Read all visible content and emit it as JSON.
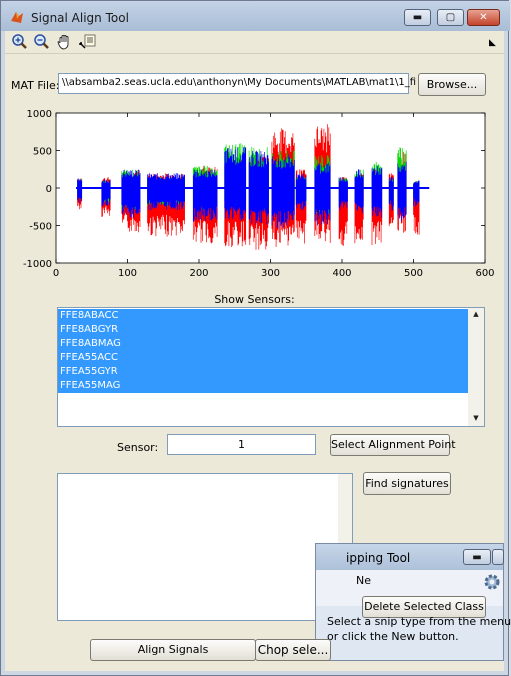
{
  "window": {
    "title": "Signal Align Tool"
  },
  "toolbar": {
    "icons": [
      "zoom-in-icon",
      "zoom-out-icon",
      "pan-hand-icon",
      "data-cursor-icon"
    ]
  },
  "mat": {
    "label": "MAT File:",
    "path": "\\\\absamba2.seas.ucla.edu\\anthonyn\\My Documents\\MATLAB\\mat1\\1_fi",
    "browse_label": "Browse..."
  },
  "chart_data": {
    "type": "line",
    "x_ticks": [
      0,
      100,
      200,
      300,
      400,
      500,
      600
    ],
    "y_ticks": [
      1000,
      500,
      0,
      -500,
      -1000
    ],
    "xlim": [
      0,
      600
    ],
    "ylim": [
      -1000,
      1000
    ],
    "grid": false,
    "series_colors": [
      "#ff0000",
      "#00dd00",
      "#0000ff"
    ],
    "segments": [
      {
        "x0": 30,
        "x1": 36,
        "red": [
          -300,
          150
        ],
        "green": [
          -150,
          120
        ],
        "blue": [
          -200,
          150
        ]
      },
      {
        "x0": 64,
        "x1": 76,
        "red": [
          -400,
          150
        ],
        "green": [
          -200,
          100
        ],
        "blue": [
          -250,
          120
        ]
      },
      {
        "x0": 92,
        "x1": 118,
        "red": [
          -600,
          250
        ],
        "green": [
          -300,
          250
        ],
        "blue": [
          -400,
          250
        ]
      },
      {
        "x0": 128,
        "x1": 180,
        "red": [
          -650,
          200
        ],
        "green": [
          -250,
          150
        ],
        "blue": [
          -300,
          200
        ]
      },
      {
        "x0": 192,
        "x1": 226,
        "red": [
          -750,
          300
        ],
        "green": [
          -300,
          300
        ],
        "blue": [
          -450,
          250
        ]
      },
      {
        "x0": 236,
        "x1": 266,
        "red": [
          -800,
          400
        ],
        "green": [
          -250,
          600
        ],
        "blue": [
          -450,
          550
        ]
      },
      {
        "x0": 270,
        "x1": 298,
        "red": [
          -850,
          450
        ],
        "green": [
          -300,
          550
        ],
        "blue": [
          -500,
          500
        ]
      },
      {
        "x0": 302,
        "x1": 334,
        "red": [
          -800,
          800
        ],
        "green": [
          -300,
          500
        ],
        "blue": [
          -550,
          450
        ]
      },
      {
        "x0": 336,
        "x1": 350,
        "red": [
          -750,
          250
        ],
        "green": [
          -200,
          150
        ],
        "blue": [
          -300,
          200
        ]
      },
      {
        "x0": 362,
        "x1": 384,
        "red": [
          -750,
          850
        ],
        "green": [
          -350,
          450
        ],
        "blue": [
          -500,
          350
        ]
      },
      {
        "x0": 396,
        "x1": 408,
        "red": [
          -800,
          150
        ],
        "green": [
          -200,
          150
        ],
        "blue": [
          -300,
          150
        ]
      },
      {
        "x0": 418,
        "x1": 430,
        "red": [
          -750,
          200
        ],
        "green": [
          -200,
          250
        ],
        "blue": [
          -350,
          250
        ]
      },
      {
        "x0": 442,
        "x1": 456,
        "red": [
          -800,
          250
        ],
        "green": [
          -200,
          350
        ],
        "blue": [
          -400,
          300
        ]
      },
      {
        "x0": 466,
        "x1": 472,
        "red": [
          -600,
          200
        ],
        "green": [
          -200,
          150
        ],
        "blue": [
          -300,
          150
        ]
      },
      {
        "x0": 478,
        "x1": 490,
        "red": [
          -600,
          500
        ],
        "green": [
          -300,
          550
        ],
        "blue": [
          -450,
          350
        ]
      },
      {
        "x0": 500,
        "x1": 508,
        "red": [
          -650,
          100
        ],
        "green": [
          -150,
          100
        ],
        "blue": [
          -250,
          100
        ]
      }
    ],
    "baseline": {
      "x0": 28,
      "x1": 522,
      "value": 0
    }
  },
  "sensors": {
    "label": "Show Sensors:",
    "items": [
      "FFE8ABACC",
      "FFE8ABGYR",
      "FFE8ABMAG",
      "FFEA55ACC",
      "FFEA55GYR",
      "FFEA55MAG"
    ]
  },
  "sensor": {
    "label": "Sensor:",
    "value": "1",
    "align_point_label": "Select Alignment Point"
  },
  "signatures": {
    "find_label": "Find signatures"
  },
  "snip": {
    "title": "ipping Tool",
    "new_label": "Ne",
    "delete_label": "Delete Selected Class",
    "hint_line1": "Select a snip type from the menu",
    "hint_line2": "or click the New button."
  },
  "bottom": {
    "align_label": "Align Signals",
    "chop_label": "Chop sele..."
  }
}
